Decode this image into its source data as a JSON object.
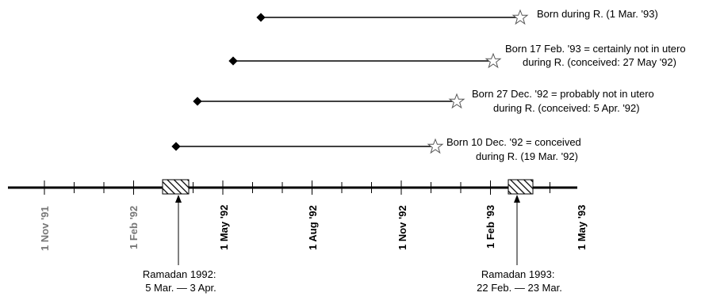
{
  "timeline": {
    "ticks": [
      {
        "label": "1 Nov '91",
        "muted": true
      },
      {
        "label": "1 Feb '92",
        "muted": true
      },
      {
        "label": "1 May '92",
        "muted": false
      },
      {
        "label": "1 Aug '92",
        "muted": false
      },
      {
        "label": "1 Nov '92",
        "muted": false
      },
      {
        "label": "1 Feb '93",
        "muted": false
      },
      {
        "label": "1 May '93",
        "muted": false
      }
    ]
  },
  "pregnancies": [
    {
      "lines": [
        "Born during R. (1 Mar. '93)"
      ]
    },
    {
      "lines": [
        "Born 17 Feb. '93 = certainly not in utero",
        "during R. (conceived: 27 May '92)"
      ]
    },
    {
      "lines": [
        "Born 27 Dec. '92 = probably not in utero",
        "during R. (conceived: 5 Apr. '92)"
      ]
    },
    {
      "lines": [
        "Born 10 Dec. '92 = conceived",
        "during R. (19 Mar. '92)"
      ]
    }
  ],
  "ramadan": [
    {
      "lines": [
        "Ramadan 1992:",
        "5 Mar. — 3 Apr."
      ]
    },
    {
      "lines": [
        "Ramadan 1993:",
        "22 Feb. — 23 Mar."
      ]
    }
  ]
}
